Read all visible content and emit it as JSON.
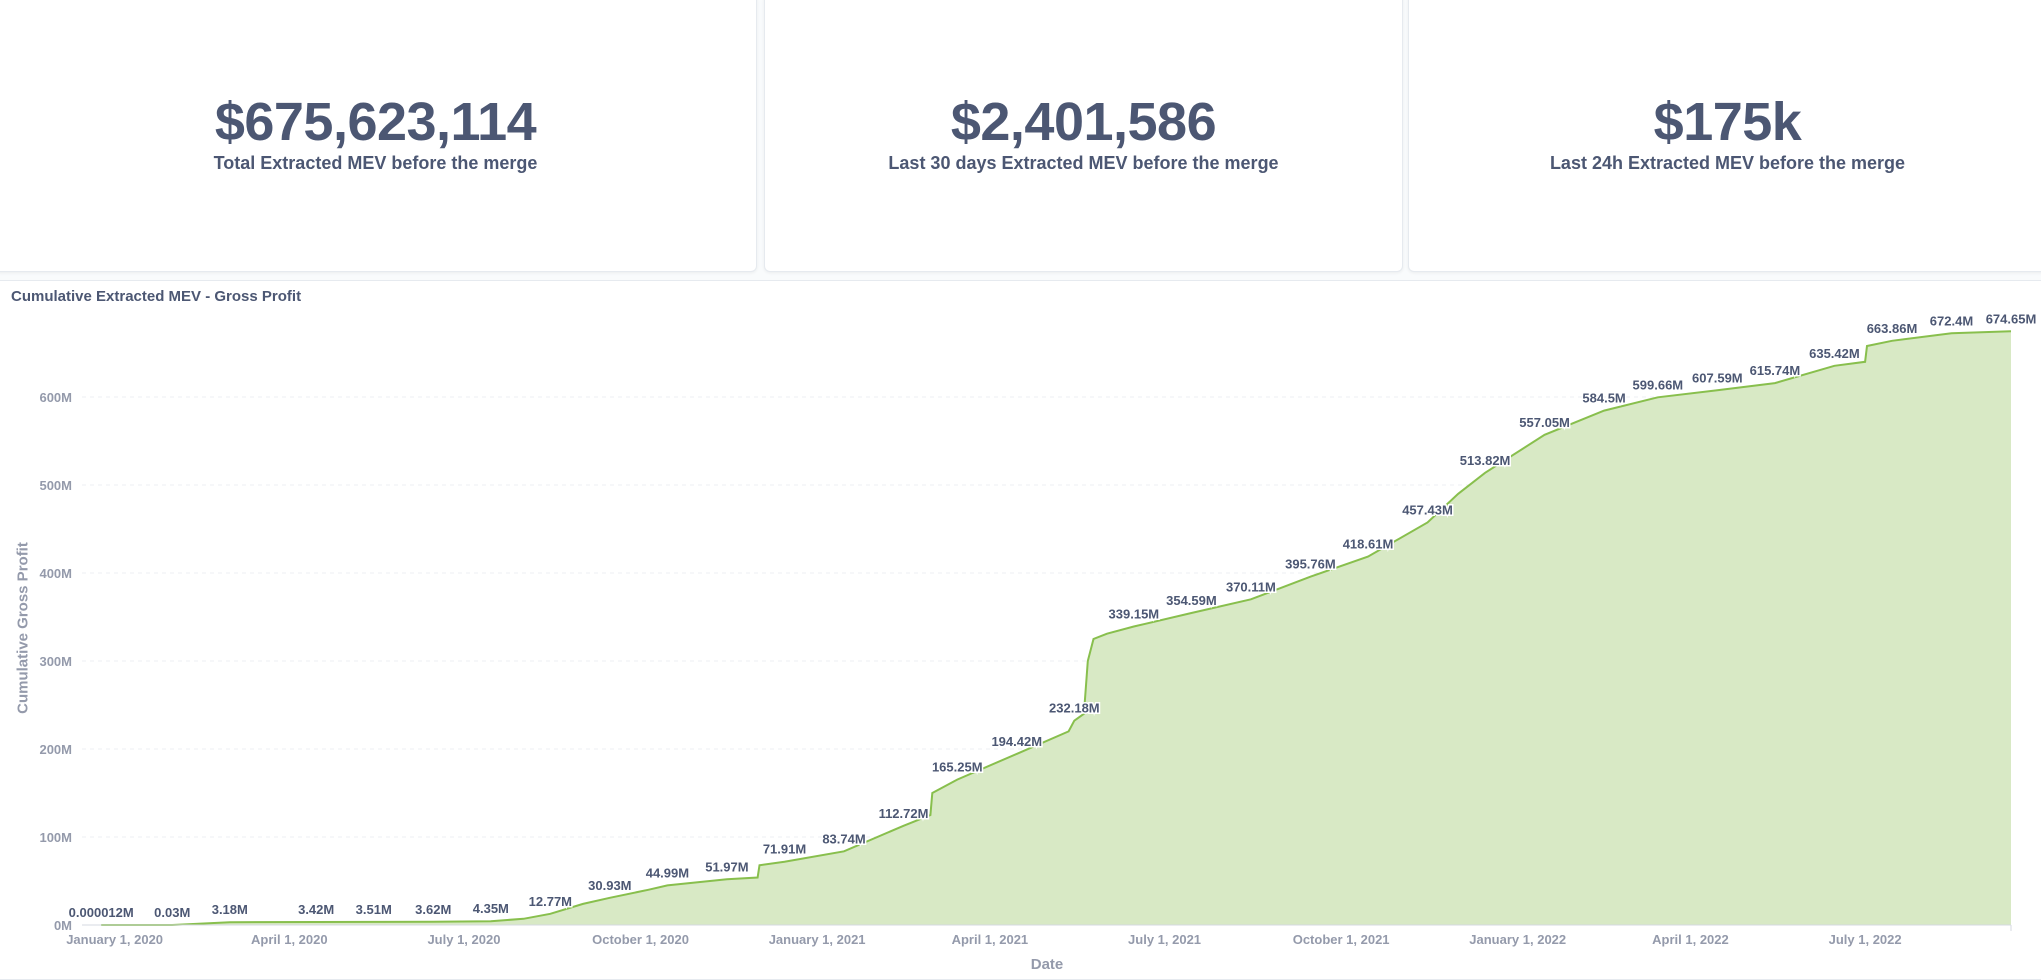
{
  "scalars": [
    {
      "value": "$675,623,114",
      "label": "Total Extracted MEV before the merge"
    },
    {
      "value": "$2,401,586",
      "label": "Last 30 days Extracted MEV before the merge"
    },
    {
      "value": "$175k",
      "label": "Last 24h Extracted MEV before the merge"
    }
  ],
  "chart_data": {
    "type": "area",
    "title": "Cumulative Extracted MEV - Gross Profit",
    "xlabel": "Date",
    "ylabel": "Cumulative Gross Profit",
    "ylim": [
      0,
      700
    ],
    "y_unit": "M",
    "grid": true,
    "color": "#88bf4d",
    "fill_color": "#d8e9c5",
    "x_ticks": [
      {
        "date": "2020-01-01",
        "label": "January 1, 2020"
      },
      {
        "date": "2020-04-01",
        "label": "April 1, 2020"
      },
      {
        "date": "2020-07-01",
        "label": "July 1, 2020"
      },
      {
        "date": "2020-10-01",
        "label": "October 1, 2020"
      },
      {
        "date": "2021-01-01",
        "label": "January 1, 2021"
      },
      {
        "date": "2021-04-01",
        "label": "April 1, 2021"
      },
      {
        "date": "2021-07-01",
        "label": "July 1, 2021"
      },
      {
        "date": "2021-10-01",
        "label": "October 1, 2021"
      },
      {
        "date": "2022-01-01",
        "label": "January 1, 2022"
      },
      {
        "date": "2022-04-01",
        "label": "April 1, 2022"
      },
      {
        "date": "2022-07-01",
        "label": "July 1, 2022"
      }
    ],
    "y_ticks": [
      {
        "value": 0,
        "label": "0M"
      },
      {
        "value": 100,
        "label": "100M"
      },
      {
        "value": 200,
        "label": "200M"
      },
      {
        "value": 300,
        "label": "300M"
      },
      {
        "value": 400,
        "label": "400M"
      },
      {
        "value": 500,
        "label": "500M"
      },
      {
        "value": 600,
        "label": "600M"
      }
    ],
    "series": [
      {
        "points": [
          {
            "x": "2019-12-25",
            "y": 1.2e-05
          },
          {
            "x": "2020-01-31",
            "y": 0.03
          },
          {
            "x": "2020-03-01",
            "y": 3.18
          },
          {
            "x": "2020-04-15",
            "y": 3.42
          },
          {
            "x": "2020-05-15",
            "y": 3.51
          },
          {
            "x": "2020-06-15",
            "y": 3.62
          },
          {
            "x": "2020-07-15",
            "y": 4.35
          },
          {
            "x": "2020-08-01",
            "y": 7
          },
          {
            "x": "2020-08-15",
            "y": 12.77
          },
          {
            "x": "2020-09-01",
            "y": 24
          },
          {
            "x": "2020-09-15",
            "y": 30.93
          },
          {
            "x": "2020-10-05",
            "y": 40
          },
          {
            "x": "2020-10-15",
            "y": 44.99
          },
          {
            "x": "2020-11-15",
            "y": 51.97
          },
          {
            "x": "2020-12-01",
            "y": 54
          },
          {
            "x": "2020-12-02",
            "y": 68
          },
          {
            "x": "2020-12-15",
            "y": 71.91
          },
          {
            "x": "2021-01-15",
            "y": 83.74
          },
          {
            "x": "2021-02-15",
            "y": 112.72
          },
          {
            "x": "2021-03-01",
            "y": 125
          },
          {
            "x": "2021-03-02",
            "y": 150
          },
          {
            "x": "2021-03-15",
            "y": 165.25
          },
          {
            "x": "2021-04-15",
            "y": 194.42
          },
          {
            "x": "2021-05-12",
            "y": 220
          },
          {
            "x": "2021-05-15",
            "y": 232.18
          },
          {
            "x": "2021-05-20",
            "y": 240
          },
          {
            "x": "2021-05-22",
            "y": 300
          },
          {
            "x": "2021-05-25",
            "y": 325
          },
          {
            "x": "2021-06-01",
            "y": 331
          },
          {
            "x": "2021-06-15",
            "y": 339.15
          },
          {
            "x": "2021-07-15",
            "y": 354.59
          },
          {
            "x": "2021-08-15",
            "y": 370.11
          },
          {
            "x": "2021-09-15",
            "y": 395.76
          },
          {
            "x": "2021-10-15",
            "y": 418.61
          },
          {
            "x": "2021-11-15",
            "y": 457.43
          },
          {
            "x": "2021-12-01",
            "y": 490
          },
          {
            "x": "2021-12-15",
            "y": 513.82
          },
          {
            "x": "2022-01-15",
            "y": 557.05
          },
          {
            "x": "2022-02-15",
            "y": 584.5
          },
          {
            "x": "2022-03-15",
            "y": 599.66
          },
          {
            "x": "2022-04-15",
            "y": 607.59
          },
          {
            "x": "2022-05-15",
            "y": 615.74
          },
          {
            "x": "2022-06-15",
            "y": 635.42
          },
          {
            "x": "2022-07-01",
            "y": 640
          },
          {
            "x": "2022-07-02",
            "y": 658
          },
          {
            "x": "2022-07-15",
            "y": 663.86
          },
          {
            "x": "2022-08-15",
            "y": 672.4
          },
          {
            "x": "2022-09-15",
            "y": 674.65
          }
        ],
        "labels": [
          {
            "x": "2019-12-25",
            "text": "0.000012M"
          },
          {
            "x": "2020-01-31",
            "text": "0.03M"
          },
          {
            "x": "2020-03-01",
            "text": "3.18M"
          },
          {
            "x": "2020-04-15",
            "text": "3.42M"
          },
          {
            "x": "2020-05-15",
            "text": "3.51M"
          },
          {
            "x": "2020-06-15",
            "text": "3.62M"
          },
          {
            "x": "2020-07-15",
            "text": "4.35M"
          },
          {
            "x": "2020-08-15",
            "text": "12.77M"
          },
          {
            "x": "2020-09-15",
            "text": "30.93M"
          },
          {
            "x": "2020-10-15",
            "text": "44.99M"
          },
          {
            "x": "2020-11-15",
            "text": "51.97M"
          },
          {
            "x": "2020-12-15",
            "text": "71.91M"
          },
          {
            "x": "2021-01-15",
            "text": "83.74M"
          },
          {
            "x": "2021-02-15",
            "text": "112.72M"
          },
          {
            "x": "2021-03-15",
            "text": "165.25M"
          },
          {
            "x": "2021-04-15",
            "text": "194.42M"
          },
          {
            "x": "2021-05-15",
            "text": "232.18M"
          },
          {
            "x": "2021-06-15",
            "text": "339.15M"
          },
          {
            "x": "2021-07-15",
            "text": "354.59M"
          },
          {
            "x": "2021-08-15",
            "text": "370.11M"
          },
          {
            "x": "2021-09-15",
            "text": "395.76M"
          },
          {
            "x": "2021-10-15",
            "text": "418.61M"
          },
          {
            "x": "2021-11-15",
            "text": "457.43M"
          },
          {
            "x": "2021-12-15",
            "text": "513.82M"
          },
          {
            "x": "2022-01-15",
            "text": "557.05M"
          },
          {
            "x": "2022-02-15",
            "text": "584.5M"
          },
          {
            "x": "2022-03-15",
            "text": "599.66M"
          },
          {
            "x": "2022-04-15",
            "text": "607.59M"
          },
          {
            "x": "2022-05-15",
            "text": "615.74M"
          },
          {
            "x": "2022-06-15",
            "text": "635.42M"
          },
          {
            "x": "2022-07-15",
            "text": "663.86M"
          },
          {
            "x": "2022-08-15",
            "text": "672.4M"
          },
          {
            "x": "2022-09-15",
            "text": "674.65M"
          }
        ]
      }
    ]
  }
}
